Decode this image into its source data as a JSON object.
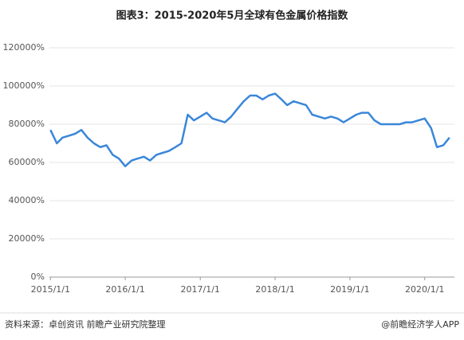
{
  "chart_data": {
    "type": "line",
    "title": "图表3：2015-2020年5月全球有色金属价格指数",
    "source": "资料来源：卓创资讯 前瞻产业研究院整理",
    "credit": "@前瞻经济学人APP",
    "x": [
      "2015/1/1",
      "2015/2/1",
      "2015/3/1",
      "2015/4/1",
      "2015/5/1",
      "2015/6/1",
      "2015/7/1",
      "2015/8/1",
      "2015/9/1",
      "2015/10/1",
      "2015/11/1",
      "2015/12/1",
      "2016/1/1",
      "2016/2/1",
      "2016/3/1",
      "2016/4/1",
      "2016/5/1",
      "2016/6/1",
      "2016/7/1",
      "2016/8/1",
      "2016/9/1",
      "2016/10/1",
      "2016/11/1",
      "2016/12/1",
      "2017/1/1",
      "2017/2/1",
      "2017/3/1",
      "2017/4/1",
      "2017/5/1",
      "2017/6/1",
      "2017/7/1",
      "2017/8/1",
      "2017/9/1",
      "2017/10/1",
      "2017/11/1",
      "2017/12/1",
      "2018/1/1",
      "2018/2/1",
      "2018/3/1",
      "2018/4/1",
      "2018/5/1",
      "2018/6/1",
      "2018/7/1",
      "2018/8/1",
      "2018/9/1",
      "2018/10/1",
      "2018/11/1",
      "2018/12/1",
      "2019/1/1",
      "2019/2/1",
      "2019/3/1",
      "2019/4/1",
      "2019/5/1",
      "2019/6/1",
      "2019/7/1",
      "2019/8/1",
      "2019/9/1",
      "2019/10/1",
      "2019/11/1",
      "2019/12/1",
      "2020/1/1",
      "2020/2/1",
      "2020/3/1",
      "2020/4/1",
      "2020/5/1"
    ],
    "values": [
      77000,
      70000,
      73000,
      74000,
      75000,
      77000,
      73000,
      70000,
      68000,
      69000,
      64000,
      62000,
      58000,
      61000,
      62000,
      63000,
      61000,
      64000,
      65000,
      66000,
      68000,
      70000,
      85000,
      82000,
      84000,
      86000,
      83000,
      82000,
      81000,
      84000,
      88000,
      92000,
      95000,
      95000,
      93000,
      95000,
      96000,
      93000,
      90000,
      92000,
      91000,
      90000,
      85000,
      84000,
      83000,
      84000,
      83000,
      81000,
      83000,
      85000,
      86000,
      86000,
      82000,
      80000,
      80000,
      80000,
      80000,
      81000,
      81000,
      82000,
      83000,
      78000,
      68000,
      69000,
      73000
    ],
    "color": "#3a87d9",
    "xlim": [
      "2014/12/27",
      "2020/5/25"
    ],
    "xticks": [
      "2015/1/1",
      "2016/1/1",
      "2017/1/1",
      "2018/1/1",
      "2019/1/1",
      "2020/1/1"
    ],
    "ylim": [
      0,
      120000
    ],
    "yticks": [
      {
        "value": 0,
        "label": "0%"
      },
      {
        "value": 20000,
        "label": "20000%"
      },
      {
        "value": 40000,
        "label": "40000%"
      },
      {
        "value": 60000,
        "label": "60000%"
      },
      {
        "value": 80000,
        "label": "80000%"
      },
      {
        "value": 100000,
        "label": "100000%"
      },
      {
        "value": 120000,
        "label": "120000%"
      }
    ],
    "grid": true
  }
}
